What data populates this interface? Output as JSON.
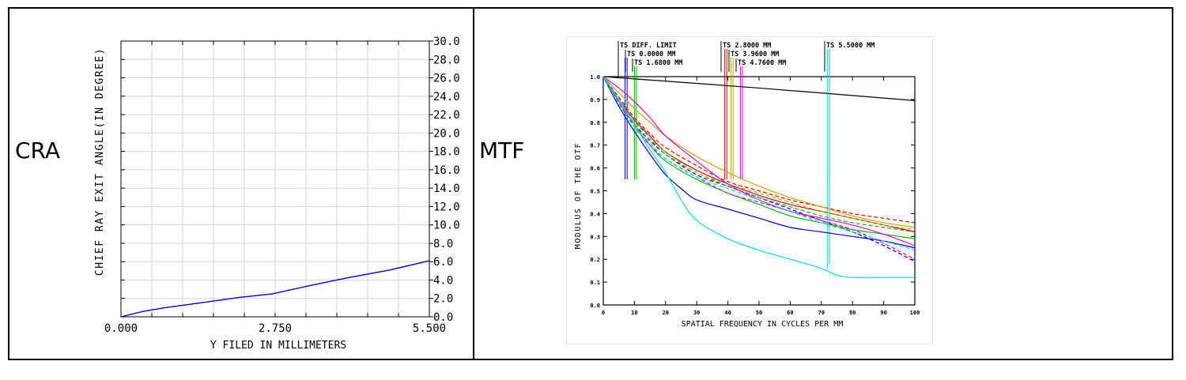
{
  "panels": {
    "cra_label": "CRA",
    "mtf_label": "MTF"
  },
  "chart_data": [
    {
      "type": "line",
      "xlabel": "Y FILED IN MILLIMETERS",
      "ylabel": "CHIEF RAY EXIT ANGLE(IN DEGREE)",
      "xlim": [
        0,
        5.5
      ],
      "ylim": [
        0,
        30
      ],
      "x_ticks": [
        "0.000",
        "2.750",
        "5.500"
      ],
      "y_ticks": [
        "0.0",
        "2.0",
        "4.0",
        "6.0",
        "8.0",
        "10.0",
        "12.0",
        "14.0",
        "16.0",
        "18.0",
        "20.0",
        "22.0",
        "24.0",
        "26.0",
        "28.0",
        "30.0"
      ],
      "y_axis_side": "right",
      "grid": true,
      "color": "#0000cc",
      "series": [
        {
          "x": [
            0,
            0.4,
            0.8,
            1.4,
            2.1,
            2.7,
            3.3,
            4.0,
            4.8,
            5.5
          ],
          "y": [
            0,
            0.6,
            1.0,
            1.5,
            2.1,
            2.5,
            3.3,
            4.2,
            5.1,
            6.1
          ]
        }
      ]
    },
    {
      "type": "line",
      "xlabel": "SPATIAL FREQUENCY IN CYCLES PER MM",
      "ylabel": "MODULUS OF THE OTF",
      "xlim": [
        0,
        100
      ],
      "ylim": [
        0,
        1
      ],
      "x_ticks": [
        "0",
        "10",
        "20",
        "30",
        "40",
        "50",
        "60",
        "70",
        "80",
        "90",
        "100"
      ],
      "y_ticks": [
        "0.0",
        "0.1",
        "0.2",
        "0.3",
        "0.4",
        "0.5",
        "0.6",
        "0.7",
        "0.8",
        "0.9",
        "1.0"
      ],
      "grid": false,
      "legend_labels": [
        {
          "text": "TS DIFF. LIMIT",
          "color": "#000000",
          "x": 5
        },
        {
          "text": "TS 0.0000 MM",
          "color": "#0000cc",
          "x": 7
        },
        {
          "text": "TS 1.6800 MM",
          "color": "#00bb00",
          "x": 10
        },
        {
          "text": "TS 2.8000 MM",
          "color": "#dd0000",
          "x": 39
        },
        {
          "text": "TS 3.9600 MM",
          "color": "#bbaa00",
          "x": 41
        },
        {
          "text": "TS 4.7600 MM",
          "color": "#ee00ee",
          "x": 44
        },
        {
          "text": "TS 5.5000 MM",
          "color": "#00dddd",
          "x": 72
        }
      ],
      "series": [
        {
          "color": "#000000",
          "dash": false,
          "x": [
            0,
            50,
            100
          ],
          "y": [
            1.0,
            0.95,
            0.895
          ]
        },
        {
          "color": "#0000cc",
          "dash": false,
          "x": [
            0,
            5,
            10,
            15,
            20,
            25,
            30,
            40,
            50,
            60,
            70,
            80,
            90,
            100
          ],
          "y": [
            1.0,
            0.87,
            0.76,
            0.66,
            0.57,
            0.51,
            0.46,
            0.42,
            0.38,
            0.34,
            0.32,
            0.3,
            0.28,
            0.25
          ]
        },
        {
          "color": "#0000cc",
          "dash": true,
          "x": [
            0,
            5,
            10,
            15,
            20,
            30,
            40,
            50,
            60,
            70,
            80,
            90,
            100
          ],
          "y": [
            1.0,
            0.88,
            0.79,
            0.72,
            0.66,
            0.57,
            0.52,
            0.47,
            0.42,
            0.37,
            0.32,
            0.26,
            0.19
          ]
        },
        {
          "color": "#00bb00",
          "dash": false,
          "x": [
            0,
            5,
            10,
            15,
            20,
            30,
            40,
            50,
            60,
            70,
            80,
            90,
            100
          ],
          "y": [
            1.0,
            0.89,
            0.79,
            0.7,
            0.63,
            0.55,
            0.49,
            0.44,
            0.39,
            0.36,
            0.33,
            0.31,
            0.29
          ]
        },
        {
          "color": "#00bb00",
          "dash": true,
          "x": [
            0,
            5,
            10,
            15,
            20,
            30,
            40,
            50,
            60,
            70,
            80,
            90,
            100
          ],
          "y": [
            1.0,
            0.9,
            0.81,
            0.73,
            0.66,
            0.58,
            0.52,
            0.47,
            0.43,
            0.39,
            0.36,
            0.34,
            0.32
          ]
        },
        {
          "color": "#dd0000",
          "dash": false,
          "x": [
            0,
            5,
            10,
            15,
            20,
            30,
            40,
            50,
            60,
            70,
            80,
            90,
            100
          ],
          "y": [
            1.0,
            0.9,
            0.81,
            0.74,
            0.67,
            0.59,
            0.53,
            0.48,
            0.44,
            0.41,
            0.38,
            0.35,
            0.32
          ]
        },
        {
          "color": "#dd0000",
          "dash": true,
          "x": [
            0,
            5,
            10,
            15,
            20,
            30,
            40,
            50,
            60,
            70,
            80,
            90,
            100
          ],
          "y": [
            1.0,
            0.91,
            0.82,
            0.75,
            0.69,
            0.61,
            0.54,
            0.5,
            0.46,
            0.43,
            0.4,
            0.38,
            0.36
          ]
        },
        {
          "color": "#bbaa00",
          "dash": false,
          "x": [
            0,
            5,
            10,
            15,
            20,
            30,
            40,
            50,
            60,
            70,
            80,
            90,
            100
          ],
          "y": [
            1.0,
            0.93,
            0.86,
            0.8,
            0.74,
            0.65,
            0.58,
            0.52,
            0.47,
            0.43,
            0.39,
            0.36,
            0.34
          ]
        },
        {
          "color": "#bbaa00",
          "dash": true,
          "x": [
            0,
            5,
            10,
            15,
            20,
            30,
            40,
            50,
            60,
            70,
            80,
            90,
            100
          ],
          "y": [
            1.0,
            0.89,
            0.8,
            0.73,
            0.67,
            0.58,
            0.53,
            0.49,
            0.45,
            0.41,
            0.38,
            0.35,
            0.33
          ]
        },
        {
          "color": "#ee00ee",
          "dash": false,
          "x": [
            0,
            5,
            10,
            15,
            20,
            30,
            40,
            50,
            60,
            70,
            80,
            90,
            100
          ],
          "y": [
            1.0,
            0.95,
            0.89,
            0.82,
            0.74,
            0.63,
            0.53,
            0.46,
            0.41,
            0.38,
            0.35,
            0.31,
            0.26
          ]
        },
        {
          "color": "#ee00ee",
          "dash": true,
          "x": [
            0,
            5,
            10,
            15,
            20,
            30,
            40,
            50,
            60,
            70,
            80,
            90,
            100
          ],
          "y": [
            1.0,
            0.89,
            0.78,
            0.7,
            0.64,
            0.56,
            0.49,
            0.45,
            0.41,
            0.37,
            0.33,
            0.27,
            0.2
          ]
        },
        {
          "color": "#00dddd",
          "dash": false,
          "x": [
            0,
            5,
            10,
            15,
            20,
            25,
            30,
            40,
            50,
            60,
            70,
            75,
            80,
            90,
            100
          ],
          "y": [
            1.0,
            0.9,
            0.79,
            0.68,
            0.58,
            0.46,
            0.37,
            0.29,
            0.24,
            0.2,
            0.16,
            0.13,
            0.12,
            0.12,
            0.12
          ]
        },
        {
          "color": "#00dddd",
          "dash": true,
          "x": [
            0,
            5,
            10,
            15,
            20,
            30,
            40,
            50,
            60,
            70,
            80,
            90,
            100
          ],
          "y": [
            1.0,
            0.88,
            0.78,
            0.71,
            0.64,
            0.56,
            0.51,
            0.46,
            0.41,
            0.36,
            0.32,
            0.28,
            0.24
          ]
        }
      ]
    }
  ]
}
